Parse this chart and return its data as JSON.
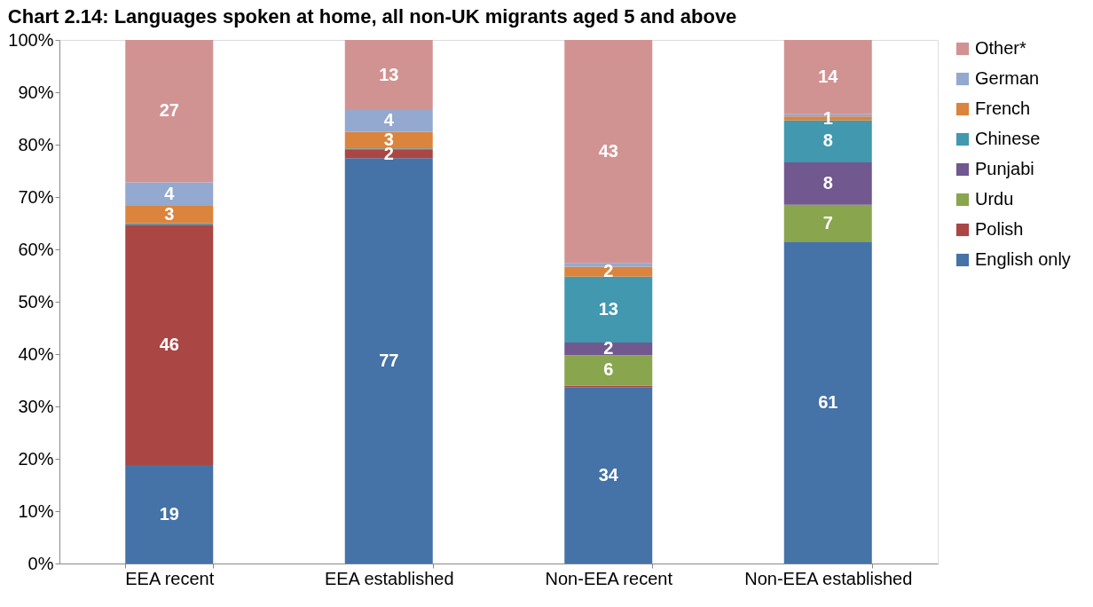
{
  "chart_data": {
    "type": "bar",
    "title": "Chart 2.14: Languages spoken at home, all non-UK migrants aged 5 and above",
    "categories": [
      "EEA recent",
      "EEA established",
      "Non-EEA recent",
      "Non-EEA established"
    ],
    "stacked": true,
    "series": [
      {
        "name": "English only",
        "color": "#4572a7",
        "values": [
          18.8,
          77.4,
          33.7,
          61.5
        ],
        "value_labels": [
          "19",
          "77",
          "34",
          "61"
        ]
      },
      {
        "name": "Polish",
        "color": "#aa4643",
        "values": [
          45.9,
          1.6,
          0.3,
          0
        ],
        "value_labels": [
          "46",
          "2",
          null,
          null
        ]
      },
      {
        "name": "Urdu",
        "color": "#89a54e",
        "values": [
          0,
          0,
          5.8,
          7.0
        ],
        "value_labels": [
          null,
          null,
          "6",
          "7"
        ]
      },
      {
        "name": "Punjabi",
        "color": "#71588f",
        "values": [
          0,
          0,
          2.4,
          8.1
        ],
        "value_labels": [
          null,
          null,
          "2",
          "8"
        ]
      },
      {
        "name": "Chinese",
        "color": "#4198af",
        "values": [
          0.3,
          0.3,
          12.6,
          8.0
        ],
        "value_labels": [
          null,
          null,
          "13",
          "8"
        ]
      },
      {
        "name": "French",
        "color": "#db843d",
        "values": [
          3.3,
          3.1,
          1.9,
          0.8
        ],
        "value_labels": [
          "3",
          "3",
          "2",
          "1"
        ]
      },
      {
        "name": "German",
        "color": "#93a9cf",
        "values": [
          4.5,
          4.2,
          0.7,
          0.4
        ],
        "value_labels": [
          "4",
          "4",
          null,
          null
        ]
      },
      {
        "name": "Other*",
        "color": "#d19392",
        "values": [
          27.2,
          13.4,
          42.6,
          14.2
        ],
        "value_labels": [
          "27",
          "13",
          "43",
          "14"
        ]
      }
    ],
    "ylim": [
      0,
      100
    ],
    "yticks": [
      {
        "value": 0,
        "label": "0%"
      },
      {
        "value": 10,
        "label": "10%"
      },
      {
        "value": 20,
        "label": "20%"
      },
      {
        "value": 30,
        "label": "30%"
      },
      {
        "value": 40,
        "label": "40%"
      },
      {
        "value": 50,
        "label": "50%"
      },
      {
        "value": 60,
        "label": "60%"
      },
      {
        "value": 70,
        "label": "70%"
      },
      {
        "value": 80,
        "label": "80%"
      },
      {
        "value": 90,
        "label": "90%"
      },
      {
        "value": 100,
        "label": "100%"
      }
    ],
    "grid": false,
    "legend": "right"
  }
}
